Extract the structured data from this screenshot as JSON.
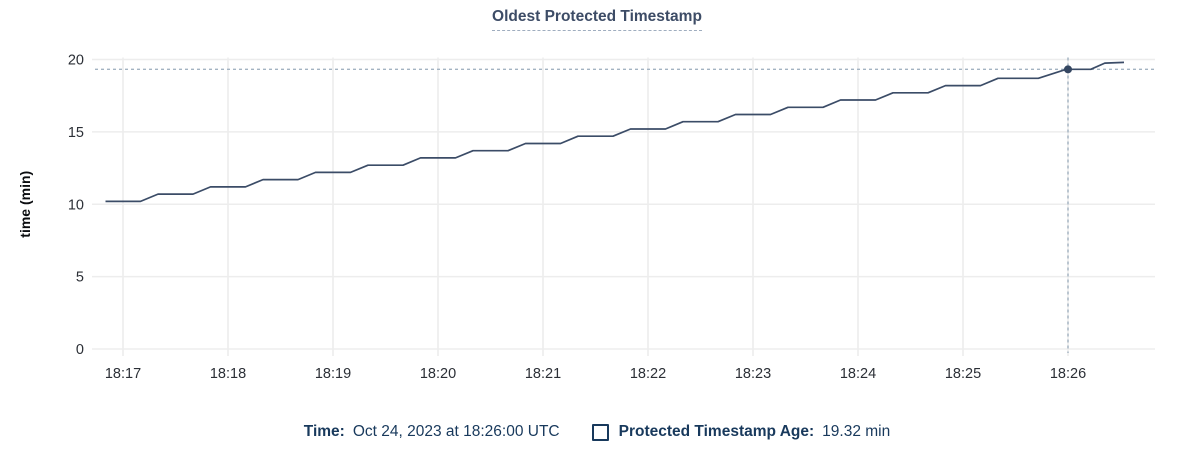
{
  "title": "Oldest Protected Timestamp",
  "colors": {
    "title": "#3d4c66",
    "series_line": "#3b4c67",
    "highlight_dot": "#354762",
    "gridline": "#ededed",
    "tick_label": "#2b2f36",
    "crosshair": "#a3b3c2",
    "legend_text": "#18395c"
  },
  "chart_data": {
    "type": "line",
    "title": "Oldest Protected Timestamp",
    "xlabel": "",
    "ylabel": "time (min)",
    "ylim": [
      0,
      20
    ],
    "yticks": [
      0,
      5,
      10,
      15,
      20
    ],
    "xticks": [
      "18:17",
      "18:18",
      "18:19",
      "18:20",
      "18:21",
      "18:22",
      "18:23",
      "18:24",
      "18:25",
      "18:26"
    ],
    "x_tick_interval_seconds": 60,
    "series_start_before_first_tick_seconds": 10,
    "grid": true,
    "legend_position": "bottom",
    "series": [
      {
        "name": "Protected Timestamp Age",
        "unit": "min",
        "points": [
          [
            0,
            10.2
          ],
          [
            20,
            10.2
          ],
          [
            30,
            10.7
          ],
          [
            50,
            10.7
          ],
          [
            60,
            11.2
          ],
          [
            80,
            11.2
          ],
          [
            90,
            11.7
          ],
          [
            110,
            11.7
          ],
          [
            120,
            12.2
          ],
          [
            140,
            12.2
          ],
          [
            150,
            12.7
          ],
          [
            170,
            12.7
          ],
          [
            180,
            13.2
          ],
          [
            200,
            13.2
          ],
          [
            210,
            13.7
          ],
          [
            230,
            13.7
          ],
          [
            240,
            14.2
          ],
          [
            260,
            14.2
          ],
          [
            270,
            14.7
          ],
          [
            290,
            14.7
          ],
          [
            300,
            15.2
          ],
          [
            320,
            15.2
          ],
          [
            330,
            15.7
          ],
          [
            350,
            15.7
          ],
          [
            360,
            16.2
          ],
          [
            380,
            16.2
          ],
          [
            390,
            16.7
          ],
          [
            410,
            16.7
          ],
          [
            420,
            17.2
          ],
          [
            440,
            17.2
          ],
          [
            450,
            17.7
          ],
          [
            470,
            17.7
          ],
          [
            480,
            18.2
          ],
          [
            500,
            18.2
          ],
          [
            510,
            18.7
          ],
          [
            533,
            18.7
          ],
          [
            549,
            19.32
          ],
          [
            563,
            19.32
          ],
          [
            571,
            19.75
          ],
          [
            582,
            19.8
          ]
        ]
      }
    ],
    "highlight": {
      "x_label": "18:26:00",
      "x_offset_seconds": 550,
      "value": 19.32
    }
  },
  "legend": {
    "time_label": "Time:",
    "time_value": "Oct 24, 2023 at 18:26:00 UTC",
    "series_label": "Protected Timestamp Age:",
    "series_value": "19.32 min"
  }
}
